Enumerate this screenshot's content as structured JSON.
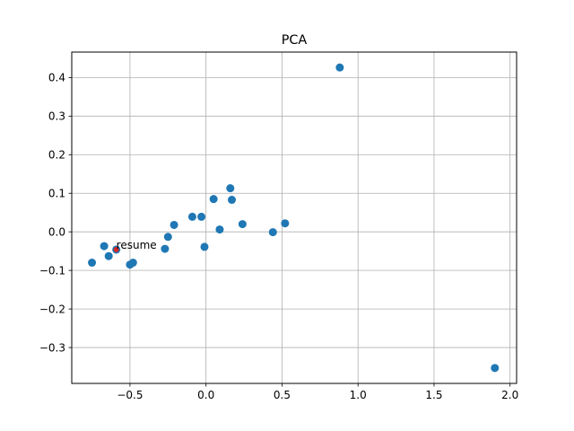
{
  "chart_data": {
    "type": "scatter",
    "title": "PCA",
    "xlabel": "",
    "ylabel": "",
    "xlim": [
      -0.883,
      2.043
    ],
    "ylim": [
      -0.393,
      0.466
    ],
    "xticks": [
      -0.5,
      0.0,
      0.5,
      1.0,
      1.5,
      2.0
    ],
    "xtick_labels": [
      "−0.5",
      "0.0",
      "0.5",
      "1.0",
      "1.5",
      "2.0"
    ],
    "yticks": [
      -0.3,
      -0.2,
      -0.1,
      0.0,
      0.1,
      0.2,
      0.3,
      0.4
    ],
    "ytick_labels": [
      "−0.3",
      "−0.2",
      "−0.1",
      "0.0",
      "0.1",
      "0.2",
      "0.3",
      "0.4"
    ],
    "grid": true,
    "colors": {
      "points": "#1f77b4",
      "highlight": "#d62728",
      "grid": "#b0b0b0"
    },
    "points": [
      {
        "x": 0.88,
        "y": 0.426
      },
      {
        "x": 1.9,
        "y": -0.353
      },
      {
        "x": -0.75,
        "y": -0.08
      },
      {
        "x": -0.67,
        "y": -0.037
      },
      {
        "x": -0.64,
        "y": -0.063
      },
      {
        "x": -0.5,
        "y": -0.085
      },
      {
        "x": -0.48,
        "y": -0.08
      },
      {
        "x": -0.27,
        "y": -0.044
      },
      {
        "x": -0.25,
        "y": -0.013
      },
      {
        "x": -0.21,
        "y": 0.018
      },
      {
        "x": -0.09,
        "y": 0.039
      },
      {
        "x": -0.03,
        "y": 0.039
      },
      {
        "x": -0.01,
        "y": -0.039
      },
      {
        "x": 0.05,
        "y": 0.085
      },
      {
        "x": 0.09,
        "y": 0.006
      },
      {
        "x": 0.16,
        "y": 0.113
      },
      {
        "x": 0.17,
        "y": 0.083
      },
      {
        "x": 0.24,
        "y": 0.02
      },
      {
        "x": 0.44,
        "y": -0.001
      },
      {
        "x": 0.52,
        "y": 0.022
      }
    ],
    "highlight": {
      "x": -0.59,
      "y": -0.046,
      "label": "resume"
    }
  }
}
